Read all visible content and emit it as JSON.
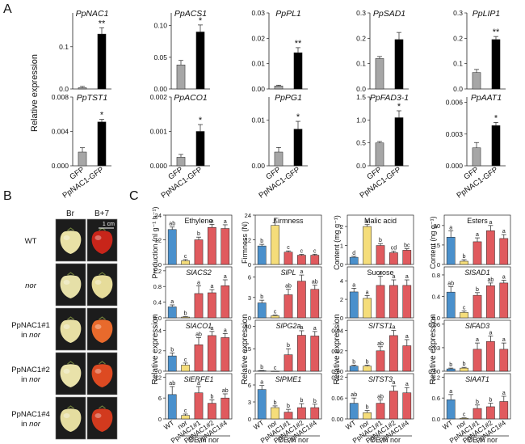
{
  "panels": {
    "A": "A",
    "B": "B",
    "C": "C"
  },
  "panel_a": {
    "ylabel": "Relative expression",
    "xticks": [
      "GFP",
      "PpNAC1-GFP"
    ],
    "colors": {
      "GFP": "#a6a6a6",
      "PpNAC1-GFP": "#000000"
    }
  },
  "panel_b": {
    "columns": [
      "Br",
      "B+7"
    ],
    "scale_bar": "1 cm",
    "rows": [
      {
        "label": "WT",
        "italic": false,
        "br_color": "#e9e1a6",
        "b7_color": "#c8251a"
      },
      {
        "label": "nor",
        "italic": true,
        "br_color": "#e6e0a8",
        "b7_color": "#e6dc9a"
      },
      {
        "label": "PpNAC1#1 in nor",
        "italic": false,
        "br_color": "#e7dfa4",
        "b7_color": "#e86a2c"
      },
      {
        "label": "PpNAC1#2 in nor",
        "italic": false,
        "br_color": "#e9e2aa",
        "b7_color": "#dd4a22"
      },
      {
        "label": "PpNAC1#4 in nor",
        "italic": false,
        "br_color": "#e5dda0",
        "b7_color": "#d23a1e"
      }
    ]
  },
  "panel_c": {
    "xticks": [
      "WT",
      "nor",
      "PpNAC1#1",
      "PpNAC1#2",
      "PpNAC1#4"
    ],
    "oe_label": "OE in nor",
    "bar_colors": [
      "#4a90cc",
      "#f5dd7a",
      "#e05a5e",
      "#e05a5e",
      "#e05a5e"
    ],
    "ylabels": {
      "col1_top": "Production (nl g⁻¹ h⁻¹)",
      "col2_top": "Firmness (N)",
      "col3_top": "Content (mg g⁻¹)",
      "col4_top": "Content (ng g⁻¹)",
      "bottom": "Relative expression"
    }
  },
  "chart_data": [
    {
      "type": "bar",
      "panel": "A",
      "title": "PpNAC1",
      "categories": [
        "GFP",
        "PpNAC1-GFP"
      ],
      "values": [
        0.003,
        0.13
      ],
      "errors": [
        0.003,
        0.015
      ],
      "sig": [
        "",
        "**"
      ],
      "ylim": [
        0,
        0.18
      ],
      "yticks": [
        "0.0",
        "0.1"
      ],
      "ytick_values": [
        0,
        0.1
      ]
    },
    {
      "type": "bar",
      "panel": "A",
      "title": "PpACS1",
      "categories": [
        "GFP",
        "PpNAC1-GFP"
      ],
      "values": [
        0.038,
        0.09
      ],
      "errors": [
        0.007,
        0.011
      ],
      "sig": [
        "",
        "*"
      ],
      "ylim": [
        0,
        0.12
      ],
      "yticks": [
        "0.00",
        "0.05",
        "0.10"
      ],
      "ytick_values": [
        0,
        0.05,
        0.1
      ]
    },
    {
      "type": "bar",
      "panel": "A",
      "title": "PpPL1",
      "categories": [
        "GFP",
        "PpNAC1-GFP"
      ],
      "values": [
        0.0012,
        0.0143
      ],
      "errors": [
        0.0003,
        0.002
      ],
      "sig": [
        "",
        "**"
      ],
      "ylim": [
        0,
        0.03
      ],
      "yticks": [
        "0.00",
        "0.01",
        "0.02",
        "0.03"
      ],
      "ytick_values": [
        0,
        0.01,
        0.02,
        0.03
      ]
    },
    {
      "type": "bar",
      "panel": "A",
      "title": "PpSAD1",
      "categories": [
        "GFP",
        "PpNAC1-GFP"
      ],
      "values": [
        0.12,
        0.195
      ],
      "errors": [
        0.008,
        0.028
      ],
      "sig": [
        "",
        ""
      ],
      "ylim": [
        0,
        0.3
      ],
      "yticks": [
        "0.0",
        "0.1",
        "0.2",
        "0.3"
      ],
      "ytick_values": [
        0,
        0.1,
        0.2,
        0.3
      ]
    },
    {
      "type": "bar",
      "panel": "A",
      "title": "PpLIP1",
      "categories": [
        "GFP",
        "PpNAC1-GFP"
      ],
      "values": [
        0.065,
        0.195
      ],
      "errors": [
        0.012,
        0.012
      ],
      "sig": [
        "",
        "**"
      ],
      "ylim": [
        0,
        0.3
      ],
      "yticks": [
        "0.0",
        "0.1",
        "0.2",
        "0.3"
      ],
      "ytick_values": [
        0,
        0.1,
        0.2,
        0.3
      ]
    },
    {
      "type": "bar",
      "panel": "A",
      "title": "PpTST1",
      "categories": [
        "GFP",
        "PpNAC1-GFP"
      ],
      "values": [
        0.0016,
        0.0051
      ],
      "errors": [
        0.0005,
        0.0003
      ],
      "sig": [
        "",
        "*"
      ],
      "ylim": [
        0,
        0.008
      ],
      "yticks": [
        "0.000",
        "0.004",
        "0.008"
      ],
      "ytick_values": [
        0,
        0.004,
        0.008
      ]
    },
    {
      "type": "bar",
      "panel": "A",
      "title": "PpACO1",
      "categories": [
        "GFP",
        "PpNAC1-GFP"
      ],
      "values": [
        0.00025,
        0.001
      ],
      "errors": [
        8e-05,
        0.0002
      ],
      "sig": [
        "",
        "*"
      ],
      "ylim": [
        0,
        0.002
      ],
      "yticks": [
        "0.000",
        "0.001",
        "0.002"
      ],
      "ytick_values": [
        0,
        0.001,
        0.002
      ]
    },
    {
      "type": "bar",
      "panel": "A",
      "title": "PpPG1",
      "categories": [
        "GFP",
        "PpNAC1-GFP"
      ],
      "values": [
        0.003,
        0.008
      ],
      "errors": [
        0.001,
        0.0017
      ],
      "sig": [
        "",
        "*"
      ],
      "ylim": [
        0,
        0.015
      ],
      "yticks": [
        "0.00",
        "0.01"
      ],
      "ytick_values": [
        0,
        0.01
      ]
    },
    {
      "type": "bar",
      "panel": "A",
      "title": "PpFAD3-1",
      "categories": [
        "GFP",
        "PpNAC1-GFP"
      ],
      "values": [
        0.5,
        1.05
      ],
      "errors": [
        0.03,
        0.15
      ],
      "sig": [
        "",
        "*"
      ],
      "ylim": [
        0,
        1.5
      ],
      "yticks": [
        "0.0",
        "0.5",
        "1.0",
        "1.5"
      ],
      "ytick_values": [
        0,
        0.5,
        1.0,
        1.5
      ]
    },
    {
      "type": "bar",
      "panel": "A",
      "title": "PpAAT1",
      "categories": [
        "GFP",
        "PpNAC1-GFP"
      ],
      "values": [
        0.0017,
        0.0038
      ],
      "errors": [
        0.0005,
        0.0003
      ],
      "sig": [
        "",
        "*"
      ],
      "ylim": [
        0,
        0.0065
      ],
      "yticks": [
        "0.000",
        "0.003",
        "0.006"
      ],
      "ytick_values": [
        0,
        0.003,
        0.006
      ]
    },
    {
      "type": "bar",
      "panel": "C",
      "title": "Ethylene",
      "italic": false,
      "categories": [
        "WT",
        "nor",
        "PpNAC1#1",
        "PpNAC1#2",
        "PpNAC1#4"
      ],
      "values": [
        17,
        1.8,
        12,
        18,
        17.5
      ],
      "errors": [
        1.2,
        0.6,
        1.3,
        1.5,
        1.8
      ],
      "letters": [
        "ab",
        "c",
        "b",
        "a",
        "a"
      ],
      "ylim": [
        0,
        24
      ],
      "yticks": [
        "0",
        "12",
        "24"
      ],
      "ytick_values": [
        0,
        12,
        24
      ]
    },
    {
      "type": "bar",
      "panel": "C",
      "title": "Firmness",
      "italic": false,
      "categories": [
        "WT",
        "nor",
        "PpNAC1#1",
        "PpNAC1#2",
        "PpNAC1#4"
      ],
      "values": [
        9,
        19,
        6,
        4.5,
        4.5
      ],
      "errors": [
        0.8,
        1.2,
        0.6,
        0.4,
        0.5
      ],
      "letters": [
        "b",
        "a",
        "c",
        "c",
        "c"
      ],
      "ylim": [
        0,
        24
      ],
      "yticks": [
        "0",
        "12",
        "24"
      ],
      "ytick_values": [
        0,
        12,
        24
      ]
    },
    {
      "type": "bar",
      "panel": "C",
      "title": "Malic acid",
      "italic": false,
      "categories": [
        "WT",
        "nor",
        "PpNAC1#1",
        "PpNAC1#2",
        "PpNAC1#4"
      ],
      "values": [
        0.38,
        2.0,
        1.0,
        0.62,
        0.75
      ],
      "errors": [
        0.05,
        0.1,
        0.1,
        0.08,
        0.08
      ],
      "letters": [
        "d",
        "a",
        "b",
        "cd",
        "bc"
      ],
      "ylim": [
        0,
        2.6
      ],
      "yticks": [
        "0",
        "1",
        "2"
      ],
      "ytick_values": [
        0,
        1,
        2
      ]
    },
    {
      "type": "bar",
      "panel": "C",
      "title": "Esters",
      "italic": false,
      "categories": [
        "WT",
        "nor",
        "PpNAC1#1",
        "PpNAC1#2",
        "PpNAC1#4"
      ],
      "values": [
        21,
        2.5,
        17.5,
        26,
        20
      ],
      "errors": [
        5,
        1.2,
        3,
        4,
        3
      ],
      "letters": [
        "a",
        "b",
        "a",
        "a",
        "a"
      ],
      "ylim": [
        0,
        38
      ],
      "yticks": [
        "0",
        "15",
        "30"
      ],
      "ytick_values": [
        0,
        15,
        30
      ]
    },
    {
      "type": "bar",
      "panel": "C",
      "title": "SlACS2",
      "italic": true,
      "categories": [
        "WT",
        "nor",
        "PpNAC1#1",
        "PpNAC1#2",
        "PpNAC1#4"
      ],
      "values": [
        0.28,
        0.02,
        0.62,
        0.64,
        0.82
      ],
      "errors": [
        0.05,
        0.01,
        0.2,
        0.08,
        0.15
      ],
      "letters": [
        "a",
        "b",
        "a",
        "a",
        "a"
      ],
      "ylim": [
        0,
        1.3
      ],
      "yticks": [
        "0.0",
        "0.4",
        "0.8",
        "1.2"
      ],
      "ytick_values": [
        0,
        0.4,
        0.8,
        1.2
      ]
    },
    {
      "type": "bar",
      "panel": "C",
      "title": "SlPL",
      "italic": true,
      "categories": [
        "WT",
        "nor",
        "PpNAC1#1",
        "PpNAC1#2",
        "PpNAC1#4"
      ],
      "values": [
        2.2,
        0.3,
        3.4,
        5.4,
        4.2
      ],
      "errors": [
        0.4,
        0.1,
        0.8,
        0.9,
        0.6
      ],
      "letters": [
        "b",
        "c",
        "ab",
        "a",
        "ab"
      ],
      "ylim": [
        0,
        7.5
      ],
      "yticks": [
        "0",
        "3",
        "6"
      ],
      "ytick_values": [
        0,
        3,
        6
      ]
    },
    {
      "type": "bar",
      "panel": "C",
      "title": "Sucrose",
      "italic": false,
      "categories": [
        "WT",
        "nor",
        "PpNAC1#1",
        "PpNAC1#2",
        "PpNAC1#4"
      ],
      "values": [
        2.8,
        2.1,
        3.5,
        3.5,
        3.5
      ],
      "errors": [
        0.4,
        0.3,
        1.0,
        0.6,
        0.6
      ],
      "letters": [
        "a",
        "a",
        "a",
        "a",
        "a"
      ],
      "ylim": [
        0,
        5.5
      ],
      "yticks": [
        "0",
        "2",
        "4"
      ],
      "ytick_values": [
        0,
        2,
        4
      ]
    },
    {
      "type": "bar",
      "panel": "C",
      "title": "SlSAD1",
      "italic": true,
      "categories": [
        "WT",
        "nor",
        "PpNAC1#1",
        "PpNAC1#2",
        "PpNAC1#4"
      ],
      "values": [
        0.48,
        0.1,
        0.42,
        0.6,
        0.65
      ],
      "errors": [
        0.1,
        0.03,
        0.05,
        0.05,
        0.05
      ],
      "letters": [
        "ab",
        "c",
        "b",
        "ab",
        "a"
      ],
      "ylim": [
        0,
        0.95
      ],
      "yticks": [
        "0.0",
        "0.4",
        "0.8"
      ],
      "ytick_values": [
        0,
        0.4,
        0.8
      ]
    },
    {
      "type": "bar",
      "panel": "C",
      "title": "SlACO1",
      "italic": true,
      "categories": [
        "WT",
        "nor",
        "PpNAC1#1",
        "PpNAC1#2",
        "PpNAC1#4"
      ],
      "values": [
        1.5,
        0.6,
        2.6,
        3.5,
        3.3
      ],
      "errors": [
        0.3,
        0.2,
        0.7,
        0.4,
        0.4
      ],
      "letters": [
        "b",
        "c",
        "ab",
        "a",
        "a"
      ],
      "ylim": [
        0,
        5
      ],
      "yticks": [
        "0",
        "2",
        "4"
      ],
      "ytick_values": [
        0,
        2,
        4
      ]
    },
    {
      "type": "bar",
      "panel": "C",
      "title": "SlPG2a",
      "italic": true,
      "categories": [
        "WT",
        "nor",
        "PpNAC1#1",
        "PpNAC1#2",
        "PpNAC1#4"
      ],
      "values": [
        0.3,
        0.05,
        11,
        24,
        23.5
      ],
      "errors": [
        0.2,
        0.03,
        4,
        3,
        3
      ],
      "letters": [
        "b",
        "c",
        "b",
        "a",
        "a"
      ],
      "ylim": [
        0,
        34
      ],
      "yticks": [
        "0",
        "15",
        "30"
      ],
      "ytick_values": [
        0,
        15,
        30
      ]
    },
    {
      "type": "bar",
      "panel": "C",
      "title": "SlTST1",
      "italic": true,
      "categories": [
        "WT",
        "nor",
        "PpNAC1#1",
        "PpNAC1#2",
        "PpNAC1#4"
      ],
      "values": [
        0.005,
        0.005,
        0.02,
        0.035,
        0.025
      ],
      "errors": [
        0.001,
        0.001,
        0.004,
        0.005,
        0.006
      ],
      "letters": [
        "b",
        "b",
        "ab",
        "a",
        "a"
      ],
      "ylim": [
        0,
        0.05
      ],
      "yticks": [
        "0.00",
        "0.02",
        "0.04"
      ],
      "ytick_values": [
        0,
        0.02,
        0.04
      ]
    },
    {
      "type": "bar",
      "panel": "C",
      "title": "SlFAD3",
      "italic": true,
      "categories": [
        "WT",
        "nor",
        "PpNAC1#1",
        "PpNAC1#2",
        "PpNAC1#4"
      ],
      "values": [
        0.003,
        0.004,
        0.028,
        0.038,
        0.028
      ],
      "errors": [
        0.001,
        0.001,
        0.008,
        0.007,
        0.008
      ],
      "letters": [
        "b",
        "b",
        "a",
        "a",
        "a"
      ],
      "ylim": [
        0,
        0.065
      ],
      "yticks": [
        "0.00",
        "0.03",
        "0.06"
      ],
      "ytick_values": [
        0,
        0.03,
        0.06
      ]
    },
    {
      "type": "bar",
      "panel": "C",
      "title": "SlERFE1",
      "italic": true,
      "categories": [
        "WT",
        "nor",
        "PpNAC1#1",
        "PpNAC1#2",
        "PpNAC1#4"
      ],
      "values": [
        7,
        1,
        7.5,
        4.5,
        6
      ],
      "errors": [
        2.3,
        0.4,
        1.8,
        1.0,
        1.2
      ],
      "letters": [
        "ab",
        "c",
        "a",
        "b",
        "ab"
      ],
      "ylim": [
        0,
        13
      ],
      "yticks": [
        "0",
        "6",
        "12"
      ],
      "ytick_values": [
        0,
        6,
        12
      ]
    },
    {
      "type": "bar",
      "panel": "C",
      "title": "SlPME1",
      "italic": true,
      "categories": [
        "WT",
        "nor",
        "PpNAC1#1",
        "PpNAC1#2",
        "PpNAC1#4"
      ],
      "values": [
        5.2,
        2.0,
        1.2,
        2.0,
        2.0
      ],
      "errors": [
        0.7,
        0.3,
        0.5,
        0.7,
        0.6
      ],
      "letters": [
        "a",
        "b",
        "b",
        "b",
        "b"
      ],
      "ylim": [
        0,
        8
      ],
      "yticks": [
        "0",
        "3",
        "6"
      ],
      "ytick_values": [
        0,
        3,
        6
      ]
    },
    {
      "type": "bar",
      "panel": "C",
      "title": "SlTST3",
      "italic": true,
      "categories": [
        "WT",
        "nor",
        "PpNAC1#1",
        "PpNAC1#2",
        "PpNAC1#4"
      ],
      "values": [
        0.045,
        0.018,
        0.045,
        0.08,
        0.075
      ],
      "errors": [
        0.015,
        0.006,
        0.01,
        0.015,
        0.015
      ],
      "letters": [
        "ab",
        "b",
        "ab",
        "a",
        "a"
      ],
      "ylim": [
        0,
        0.13
      ],
      "yticks": [
        "0.00",
        "0.06",
        "0.12"
      ],
      "ytick_values": [
        0,
        0.06,
        0.12
      ]
    },
    {
      "type": "bar",
      "panel": "C",
      "title": "SlAAT1",
      "italic": true,
      "categories": [
        "WT",
        "nor",
        "PpNAC1#1",
        "PpNAC1#2",
        "PpNAC1#4"
      ],
      "values": [
        0.55,
        0.02,
        0.3,
        0.35,
        0.5
      ],
      "errors": [
        0.15,
        0.01,
        0.1,
        0.1,
        0.15
      ],
      "letters": [
        "a",
        "c",
        "b",
        "b",
        "a"
      ],
      "ylim": [
        0,
        1.3
      ],
      "yticks": [
        "0.0",
        "0.6",
        "1.2"
      ],
      "ytick_values": [
        0,
        0.6,
        1.2
      ]
    }
  ]
}
